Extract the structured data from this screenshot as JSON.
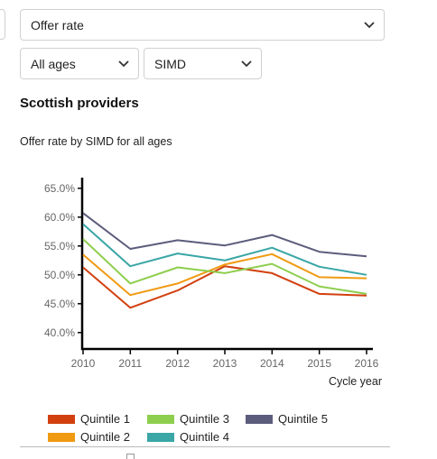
{
  "filters": {
    "measure": "Offer rate",
    "age": "All ages",
    "breakdown": "SIMD"
  },
  "section_title": "Scottish providers",
  "colors": {
    "q1": "#d2400f",
    "q2": "#f09a12",
    "q3": "#8ece4e",
    "q4": "#3aa6a6",
    "q5": "#5c5c7c"
  },
  "chart_data": {
    "type": "line",
    "title": "Offer rate by SIMD for all ages",
    "xlabel": "Cycle year",
    "ylabel": "",
    "x": [
      2010,
      2011,
      2012,
      2013,
      2014,
      2015,
      2016
    ],
    "yticks": [
      "65.0%",
      "60.0%",
      "55.0%",
      "50.0%",
      "45.0%",
      "40.0%"
    ],
    "ylim": [
      37.0,
      67.0
    ],
    "grid": false,
    "legend_position": "bottom",
    "series": [
      {
        "name": "Quintile 1",
        "values": [
          51.3,
          44.3,
          47.3,
          51.5,
          50.3,
          46.7,
          46.4
        ]
      },
      {
        "name": "Quintile 2",
        "values": [
          53.5,
          46.5,
          48.5,
          51.8,
          53.6,
          49.6,
          49.4
        ]
      },
      {
        "name": "Quintile 3",
        "values": [
          56.2,
          48.5,
          51.3,
          50.3,
          51.9,
          48.0,
          46.7
        ]
      },
      {
        "name": "Quintile 4",
        "values": [
          58.8,
          51.5,
          53.7,
          52.5,
          54.7,
          51.4,
          50.0
        ]
      },
      {
        "name": "Quintile 5",
        "values": [
          60.7,
          54.5,
          56.0,
          55.1,
          56.9,
          54.0,
          53.2
        ]
      }
    ]
  }
}
